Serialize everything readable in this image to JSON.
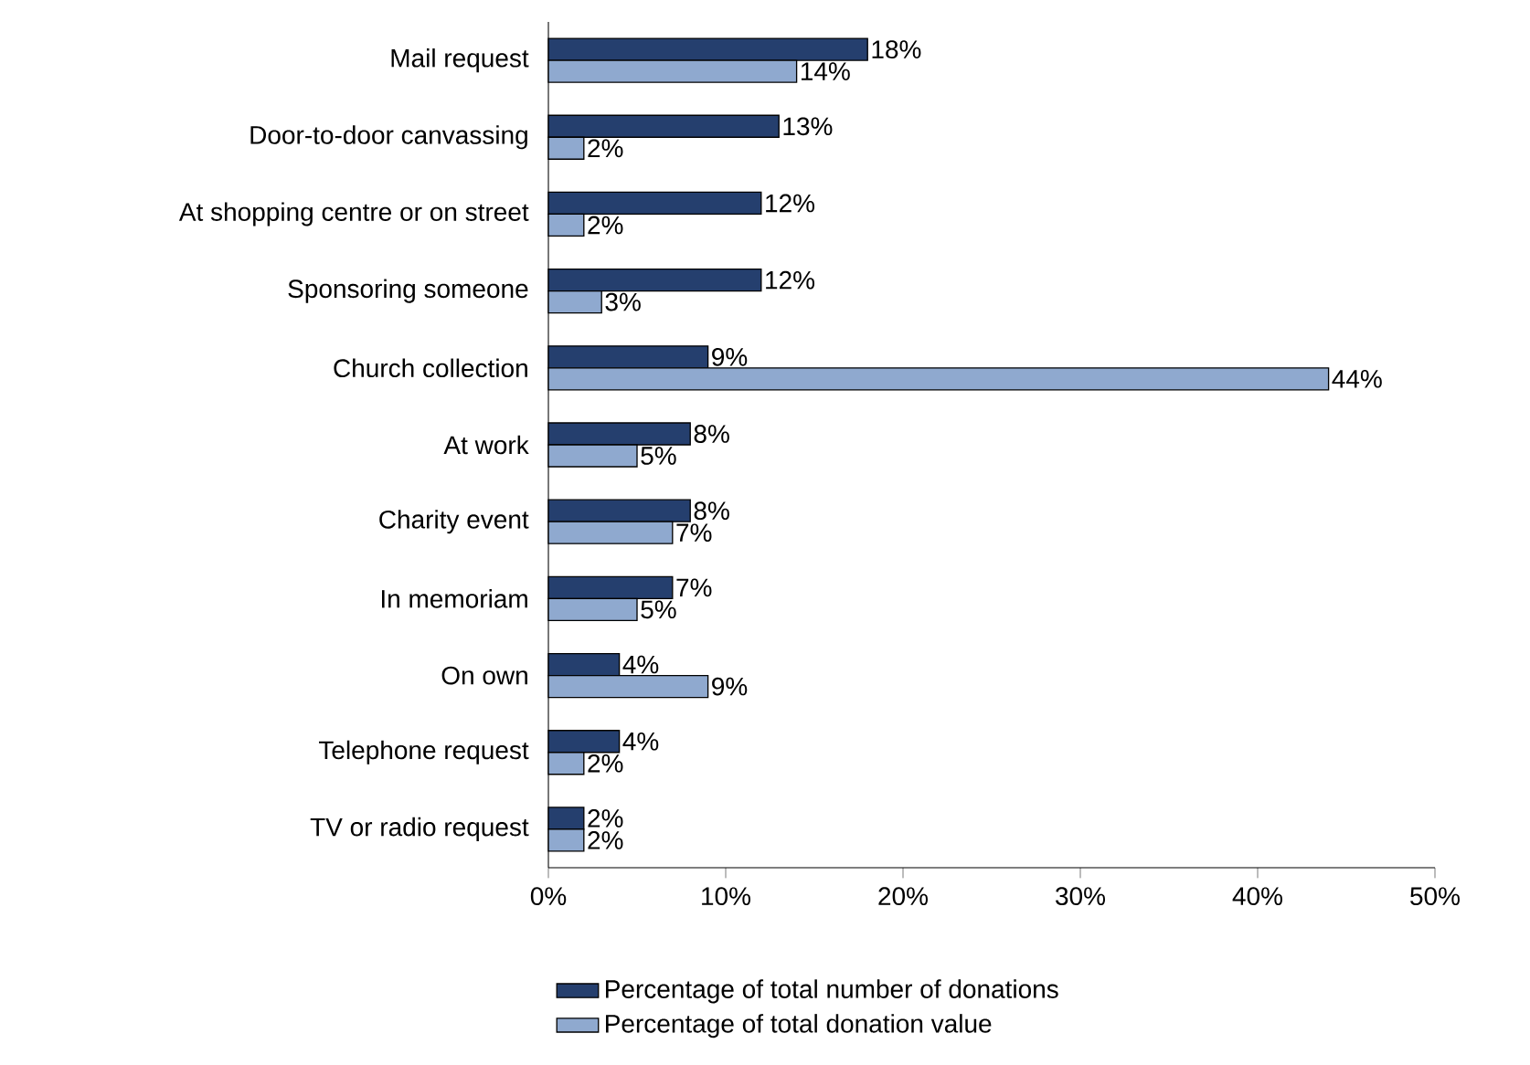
{
  "chart_data": {
    "type": "bar",
    "orientation": "horizontal",
    "categories": [
      "Mail request",
      "Door-to-door canvassing",
      "At shopping centre or on street",
      "Sponsoring someone",
      "Church collection",
      "At work",
      "Charity event",
      "In memoriam",
      "On own",
      "Telephone request",
      "TV or radio request"
    ],
    "series": [
      {
        "name": "Percentage of total number of donations",
        "color": "#253f6e",
        "values": [
          18,
          13,
          12,
          12,
          9,
          8,
          8,
          7,
          4,
          4,
          2
        ],
        "value_labels": [
          "18%",
          "13%",
          "12%",
          "12%",
          "9%",
          "8%",
          "8%",
          "7%",
          "4%",
          "4%",
          "2%"
        ]
      },
      {
        "name": "Percentage of total donation value",
        "color": "#8fa9cf",
        "values": [
          14,
          2,
          2,
          3,
          44,
          5,
          7,
          5,
          9,
          2,
          2
        ],
        "value_labels": [
          "14%",
          "2%",
          "2%",
          "3%",
          "44%",
          "5%",
          "7%",
          "5%",
          "9%",
          "2%",
          "2%"
        ]
      }
    ],
    "xlim": [
      0,
      50
    ],
    "xticks": [
      {
        "value": 0,
        "label": "0%"
      },
      {
        "value": 10,
        "label": "10%"
      },
      {
        "value": 20,
        "label": "20%"
      },
      {
        "value": 30,
        "label": "30%"
      },
      {
        "value": 40,
        "label": "40%"
      },
      {
        "value": 50,
        "label": "50%"
      }
    ],
    "legend": "bottom",
    "grid": false
  }
}
